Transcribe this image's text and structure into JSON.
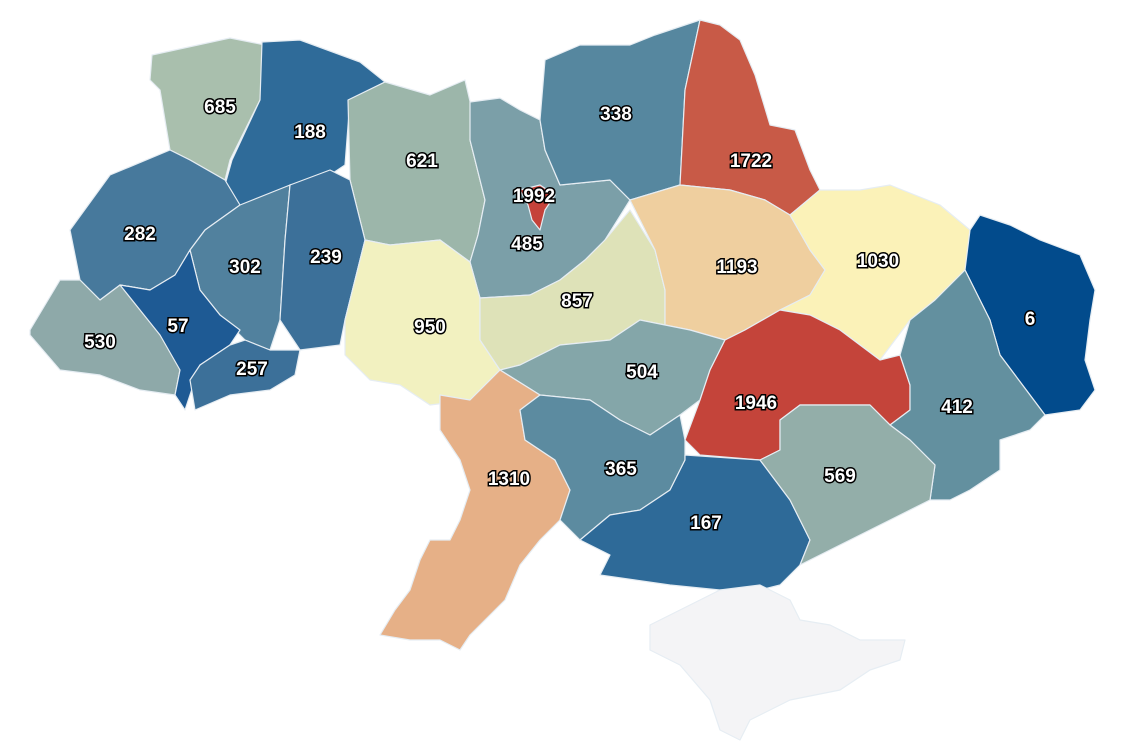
{
  "chart_data": {
    "type": "choropleth",
    "regions": [
      {
        "id": "volyn",
        "value": 685,
        "color": "#a9bfad"
      },
      {
        "id": "rivne",
        "value": 188,
        "color": "#2f6b99"
      },
      {
        "id": "zhytomyr",
        "value": 621,
        "color": "#9cb6aa"
      },
      {
        "id": "kyiv-oblast",
        "value": 485,
        "color": "#7b9fa8"
      },
      {
        "id": "chernihiv",
        "value": 338,
        "color": "#56879f"
      },
      {
        "id": "sumy",
        "value": 1722,
        "color": "#c85a47"
      },
      {
        "id": "lviv",
        "value": 282,
        "color": "#47799c"
      },
      {
        "id": "ternopil",
        "value": 302,
        "color": "#51819e"
      },
      {
        "id": "khmelnytskyi",
        "value": 239,
        "color": "#3c7099"
      },
      {
        "id": "zakarpattia",
        "value": 530,
        "color": "#8ea9a9"
      },
      {
        "id": "ivano-frankivsk",
        "value": 57,
        "color": "#1e5a94"
      },
      {
        "id": "chernivtsi",
        "value": 257,
        "color": "#3c7099"
      },
      {
        "id": "vinnytsia",
        "value": 950,
        "color": "#f2f1c0"
      },
      {
        "id": "cherkasy",
        "value": 857,
        "color": "#dee2b8"
      },
      {
        "id": "poltava",
        "value": 1193,
        "color": "#efcf9f"
      },
      {
        "id": "kharkiv",
        "value": 1030,
        "color": "#fbf2b8"
      },
      {
        "id": "luhansk",
        "value": 6,
        "color": "#024b8c"
      },
      {
        "id": "kirovohrad",
        "value": 504,
        "color": "#84a6a9"
      },
      {
        "id": "dnipropetrovsk",
        "value": 1946,
        "color": "#c4443a"
      },
      {
        "id": "donetsk",
        "value": 412,
        "color": "#63909f"
      },
      {
        "id": "odesa",
        "value": 1310,
        "color": "#e6b087"
      },
      {
        "id": "mykolaiv",
        "value": 365,
        "color": "#5c8ba0"
      },
      {
        "id": "kherson",
        "value": 167,
        "color": "#2e6a98"
      },
      {
        "id": "zaporizhzhia",
        "value": 569,
        "color": "#93aea9"
      },
      {
        "id": "kyiv-city",
        "value": 1992,
        "color": "#c5423a"
      },
      {
        "id": "crimea",
        "value": null,
        "color": "#f4f4f6"
      }
    ],
    "no_data_color": "#f4f4f6",
    "legend": "none"
  }
}
